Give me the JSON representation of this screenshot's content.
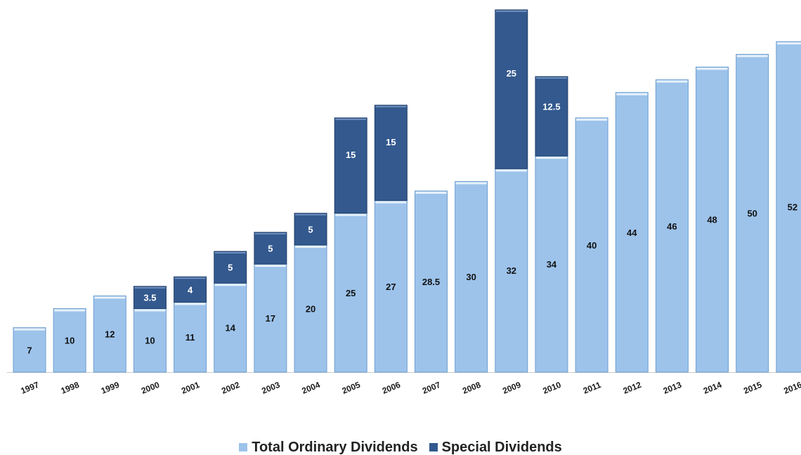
{
  "chart_data": {
    "type": "bar",
    "stacked": true,
    "categories": [
      "1997",
      "1998",
      "1999",
      "2000",
      "2001",
      "2002",
      "2003",
      "2004",
      "2005",
      "2006",
      "2007",
      "2008",
      "2009",
      "2010",
      "2011",
      "2012",
      "2013",
      "2014",
      "2015",
      "2016"
    ],
    "series": [
      {
        "name": "Total Ordinary Dividends",
        "color": "#9dc3eb",
        "values": [
          7,
          10,
          12,
          10,
          11,
          14,
          17,
          20,
          25,
          27,
          28.5,
          30,
          32,
          34,
          40,
          44,
          46,
          48,
          50,
          52
        ],
        "labels": [
          "7",
          "10",
          "12",
          "10",
          "11",
          "14",
          "17",
          "20",
          "25",
          "27",
          "28.5",
          "30",
          "32",
          "34",
          "40",
          "44",
          "46",
          "48",
          "50",
          "52"
        ]
      },
      {
        "name": "Special Dividends",
        "color": "#33598e",
        "values": [
          0,
          0,
          0,
          3.5,
          4,
          5,
          5,
          5,
          15,
          15,
          0,
          0,
          25,
          12.5,
          0,
          0,
          0,
          0,
          0,
          0
        ],
        "labels": [
          "",
          "",
          "",
          "3.5",
          "4",
          "5",
          "5",
          "5",
          "15",
          "15",
          "",
          "",
          "25",
          "12.5",
          "",
          "",
          "",
          "",
          "",
          ""
        ]
      }
    ],
    "xlabel": "",
    "ylabel": "",
    "ylim": [
      0,
      57
    ],
    "grid": false,
    "legend_position": "bottom-center"
  }
}
